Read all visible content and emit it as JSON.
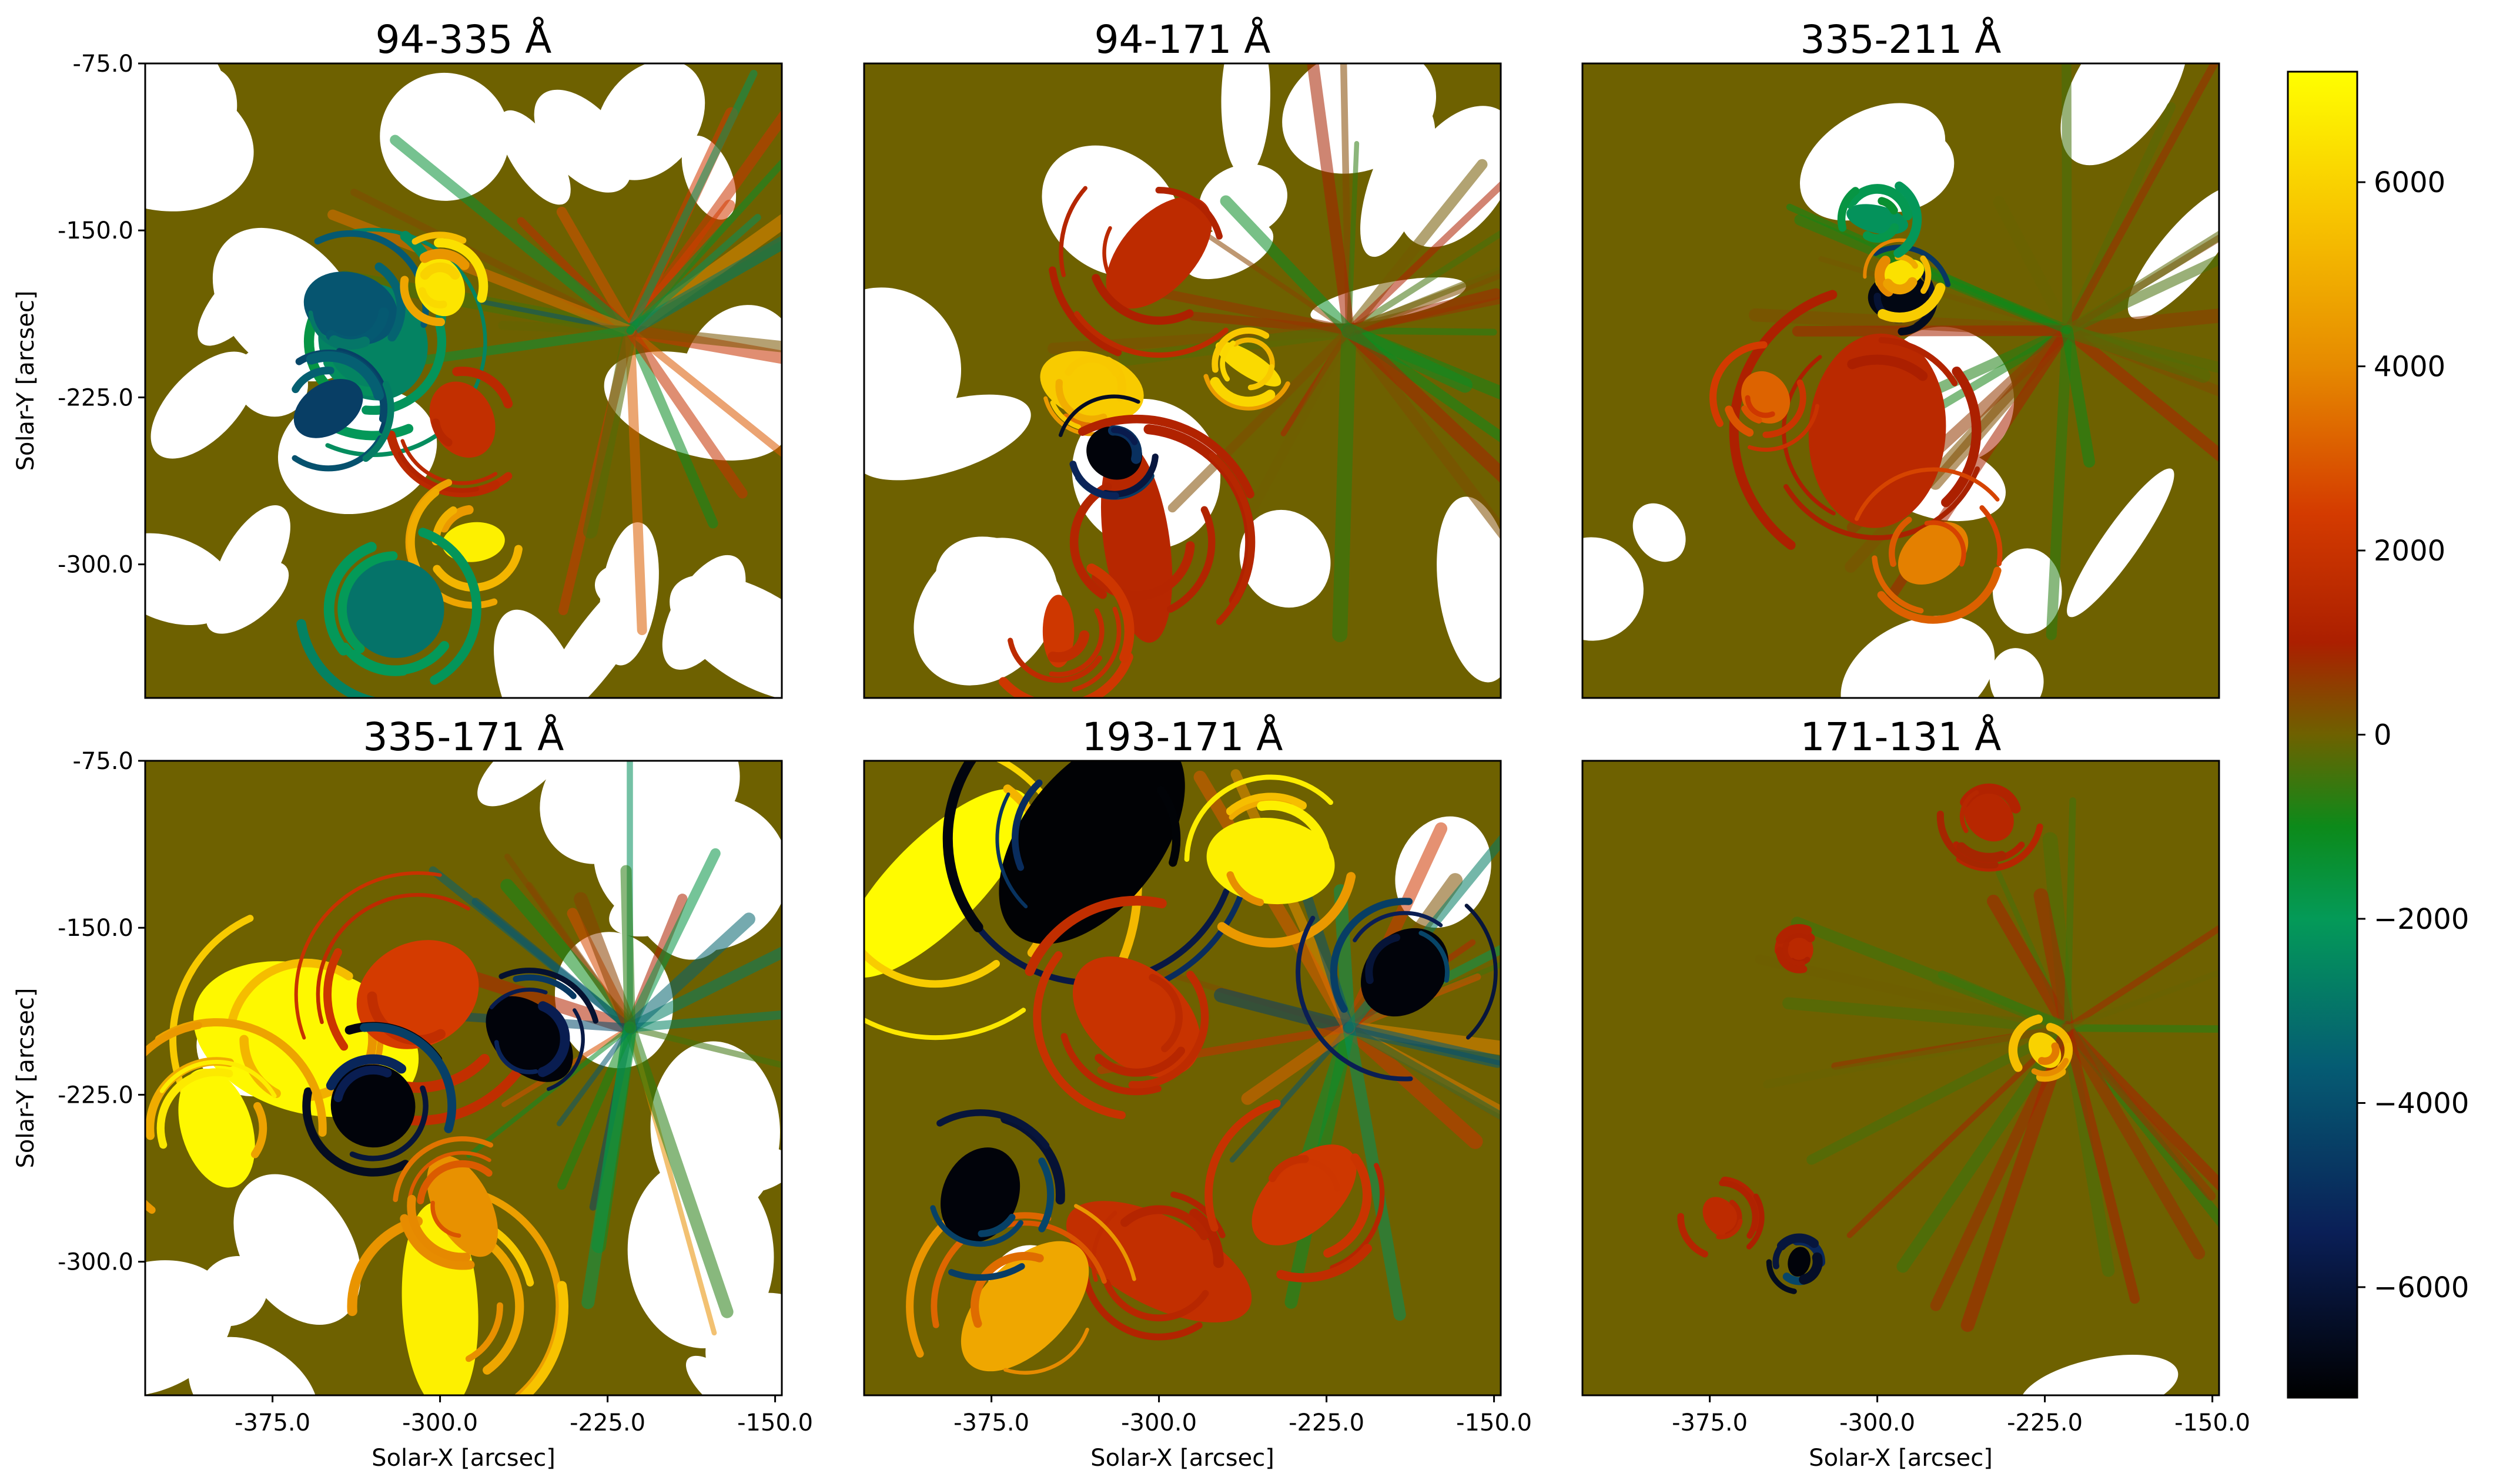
{
  "chart_data": {
    "type": "heatmap",
    "figure": "difference-map grid",
    "colormap": {
      "stops": [
        {
          "value": -7200,
          "color": "#000000"
        },
        {
          "value": -5400,
          "color": "#0a1f57"
        },
        {
          "value": -3600,
          "color": "#055c73"
        },
        {
          "value": -2000,
          "color": "#049a58"
        },
        {
          "value": -1000,
          "color": "#0c8a1a"
        },
        {
          "value": 0,
          "color": "#6e6100"
        },
        {
          "value": 1000,
          "color": "#ab1f00"
        },
        {
          "value": 2400,
          "color": "#d43b00"
        },
        {
          "value": 4000,
          "color": "#e68a00"
        },
        {
          "value": 5600,
          "color": "#f7c300"
        },
        {
          "value": 7200,
          "color": "#ffff00"
        }
      ],
      "range": [
        -7200,
        7200
      ],
      "ticks": [
        {
          "value": 6000,
          "label": "6000"
        },
        {
          "value": 4000,
          "label": "4000"
        },
        {
          "value": 2000,
          "label": "2000"
        },
        {
          "value": 0,
          "label": "0"
        },
        {
          "value": -2000,
          "label": "−2000"
        },
        {
          "value": -4000,
          "label": "−4000"
        },
        {
          "value": -6000,
          "label": "−6000"
        }
      ]
    },
    "xlim": [
      -432,
      -147
    ],
    "ylim": [
      -360,
      -75
    ],
    "xticks": [
      {
        "value": -375,
        "label": "-375.0"
      },
      {
        "value": -300,
        "label": "-300.0"
      },
      {
        "value": -225,
        "label": "-225.0"
      },
      {
        "value": -150,
        "label": "-150.0"
      }
    ],
    "yticks": [
      {
        "value": -75,
        "label": "-75.0"
      },
      {
        "value": -150,
        "label": "-150.0"
      },
      {
        "value": -225,
        "label": "-225.0"
      },
      {
        "value": -300,
        "label": "-300.0"
      }
    ],
    "xlabel": "Solar-X [arcsec]",
    "ylabel": "Solar-Y [arcsec]",
    "panels": [
      {
        "title": "94-335 Å",
        "row": 0,
        "col": 0,
        "dominant": "brown-green",
        "white_fraction": 0.4,
        "features": [
          {
            "x": -330,
            "y": -200,
            "r": 22,
            "value": -2600
          },
          {
            "x": -340,
            "y": -185,
            "r": 18,
            "value": -3800
          },
          {
            "x": -290,
            "y": -235,
            "r": 14,
            "value": 1800
          },
          {
            "x": -285,
            "y": -290,
            "r": 14,
            "value": 6800
          },
          {
            "x": -300,
            "y": -175,
            "r": 10,
            "value": 6500
          },
          {
            "x": -320,
            "y": -320,
            "r": 20,
            "value": -3000
          },
          {
            "x": -350,
            "y": -230,
            "r": 12,
            "value": -4500
          }
        ]
      },
      {
        "title": "94-171 Å",
        "row": 0,
        "col": 1,
        "dominant": "brown",
        "white_fraction": 0.25,
        "features": [
          {
            "x": -300,
            "y": -160,
            "r": 24,
            "value": 1600
          },
          {
            "x": -330,
            "y": -220,
            "r": 14,
            "value": 5800
          },
          {
            "x": -310,
            "y": -290,
            "r": 26,
            "value": 1400
          },
          {
            "x": -320,
            "y": -250,
            "r": 12,
            "value": -7000
          },
          {
            "x": -260,
            "y": -210,
            "r": 10,
            "value": 6200
          },
          {
            "x": -345,
            "y": -330,
            "r": 14,
            "value": 2200
          }
        ]
      },
      {
        "title": "335-211 Å",
        "row": 0,
        "col": 2,
        "dominant": "brown",
        "white_fraction": 0.2,
        "features": [
          {
            "x": -300,
            "y": -240,
            "r": 28,
            "value": 1500
          },
          {
            "x": -275,
            "y": -295,
            "r": 16,
            "value": 3800
          },
          {
            "x": -290,
            "y": -180,
            "r": 10,
            "value": -6800
          },
          {
            "x": -290,
            "y": -170,
            "r": 8,
            "value": 6400
          },
          {
            "x": -350,
            "y": -225,
            "r": 10,
            "value": 3200
          },
          {
            "x": -300,
            "y": -145,
            "r": 10,
            "value": -2200
          }
        ]
      },
      {
        "title": "335-171 Å",
        "row": 1,
        "col": 0,
        "dominant": "brown-yellow",
        "white_fraction": 0.3,
        "features": [
          {
            "x": -360,
            "y": -200,
            "r": 30,
            "value": 7000
          },
          {
            "x": -300,
            "y": -320,
            "r": 30,
            "value": 6800
          },
          {
            "x": -310,
            "y": -180,
            "r": 24,
            "value": 2400
          },
          {
            "x": -330,
            "y": -230,
            "r": 18,
            "value": -7000
          },
          {
            "x": -260,
            "y": -200,
            "r": 14,
            "value": -7000
          },
          {
            "x": -290,
            "y": -275,
            "r": 16,
            "value": 4200
          },
          {
            "x": -400,
            "y": -240,
            "r": 22,
            "value": 7000
          }
        ]
      },
      {
        "title": "193-171 Å",
        "row": 1,
        "col": 1,
        "dominant": "brown-yellow-black",
        "white_fraction": 0.03,
        "features": [
          {
            "x": -400,
            "y": -130,
            "r": 40,
            "value": 7100
          },
          {
            "x": -330,
            "y": -110,
            "r": 32,
            "value": -7100
          },
          {
            "x": -310,
            "y": -190,
            "r": 22,
            "value": 2000
          },
          {
            "x": -300,
            "y": -300,
            "r": 26,
            "value": 1800
          },
          {
            "x": -235,
            "y": -270,
            "r": 18,
            "value": 2200
          },
          {
            "x": -250,
            "y": -120,
            "r": 18,
            "value": 6800
          },
          {
            "x": -360,
            "y": -320,
            "r": 22,
            "value": 4800
          },
          {
            "x": -190,
            "y": -170,
            "r": 20,
            "value": -7000
          },
          {
            "x": -380,
            "y": -270,
            "r": 16,
            "value": -7000
          }
        ]
      },
      {
        "title": "171-131 Å",
        "row": 1,
        "col": 2,
        "dominant": "brown",
        "white_fraction": 0.02,
        "features": [
          {
            "x": -250,
            "y": -100,
            "r": 10,
            "value": 1400
          },
          {
            "x": -225,
            "y": -205,
            "r": 6,
            "value": 6000
          },
          {
            "x": -370,
            "y": -280,
            "r": 8,
            "value": 1600
          },
          {
            "x": -335,
            "y": -160,
            "r": 6,
            "value": 1500
          },
          {
            "x": -335,
            "y": -300,
            "r": 6,
            "value": -7000
          }
        ]
      }
    ]
  }
}
